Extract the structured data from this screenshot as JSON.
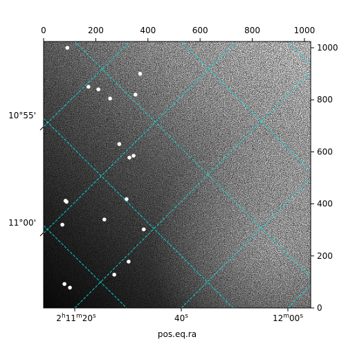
{
  "chart_data": {
    "type": "heatmap",
    "title": "",
    "xlabel": "pos.eq.ra",
    "ylabel": "",
    "colormap": "grayscale",
    "top_axis": {
      "range": [
        0,
        1024
      ],
      "ticks": [
        "0",
        "200",
        "400",
        "600",
        "800",
        "1000"
      ],
      "tick_values": [
        0,
        200,
        400,
        600,
        800,
        1000
      ]
    },
    "right_axis": {
      "range": [
        0,
        1024
      ],
      "ticks": [
        "0",
        "200",
        "400",
        "600",
        "800",
        "1000"
      ],
      "tick_values": [
        0,
        200,
        400,
        600,
        800,
        1000
      ]
    },
    "bottom_axis": {
      "quantity": "right ascension",
      "ticks": [
        {
          "value": "2h11m20s",
          "label": {
            "base": "2",
            "h": "h",
            "min": "11",
            "m": "m",
            "sec": "20",
            "s": "s"
          }
        },
        {
          "value": "2h11m40s",
          "label": {
            "base": "40",
            "s": "s"
          }
        },
        {
          "value": "2h12m00s",
          "label": {
            "base": "12",
            "m": "m",
            "sec": "00",
            "s": "s"
          }
        }
      ]
    },
    "left_axis": {
      "quantity": "declination",
      "ticks": [
        "10°55'",
        "11°00'"
      ]
    },
    "grid": true,
    "grid_color": "#00e5e5",
    "stars_pixel_xy": [
      [
        172,
        850
      ],
      [
        255,
        805
      ],
      [
        352,
        820
      ],
      [
        329,
        578
      ],
      [
        345,
        585
      ],
      [
        318,
        418
      ],
      [
        233,
        340
      ],
      [
        384,
        302
      ],
      [
        326,
        178
      ],
      [
        271,
        128
      ],
      [
        72,
        320
      ],
      [
        80,
        92
      ],
      [
        101,
        78
      ],
      [
        91,
        1000
      ],
      [
        370,
        900
      ],
      [
        88,
        408
      ],
      [
        84,
        412
      ],
      [
        210,
        840
      ],
      [
        290,
        630
      ]
    ]
  }
}
